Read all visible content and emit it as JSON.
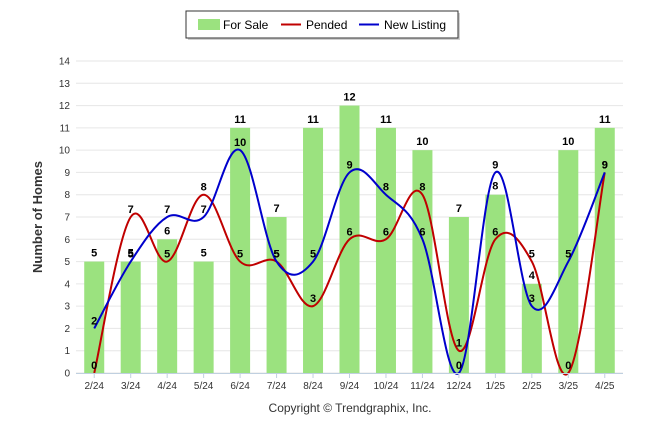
{
  "chart_data": {
    "type": "bar",
    "categories": [
      "2/24",
      "3/24",
      "4/24",
      "5/24",
      "6/24",
      "7/24",
      "8/24",
      "9/24",
      "10/24",
      "11/24",
      "12/24",
      "1/25",
      "2/25",
      "3/25",
      "4/25"
    ],
    "series": [
      {
        "name": "For Sale",
        "kind": "bar",
        "color": "#9be27f",
        "values": [
          5,
          5,
          6,
          5,
          11,
          7,
          11,
          12,
          11,
          10,
          7,
          8,
          4,
          10,
          11
        ]
      },
      {
        "name": "Pended",
        "kind": "line",
        "color": "#c00000",
        "values": [
          0,
          7,
          5,
          8,
          5,
          5,
          3,
          6,
          6,
          8,
          1,
          6,
          5,
          0,
          9
        ]
      },
      {
        "name": "New Listing",
        "kind": "line",
        "color": "#0000cc",
        "values": [
          2,
          5,
          7,
          7,
          10,
          5,
          5,
          9,
          8,
          6,
          0,
          9,
          3,
          5,
          9
        ]
      }
    ],
    "ylabel": "Number of Homes",
    "xlabel": "",
    "ylim": [
      0,
      14
    ],
    "yticks": [
      0,
      1,
      2,
      3,
      4,
      5,
      6,
      7,
      8,
      9,
      10,
      11,
      12,
      13,
      14
    ],
    "grid": true,
    "legend_position": "top-center",
    "credit": "Copyright © Trendgraphix, Inc."
  }
}
